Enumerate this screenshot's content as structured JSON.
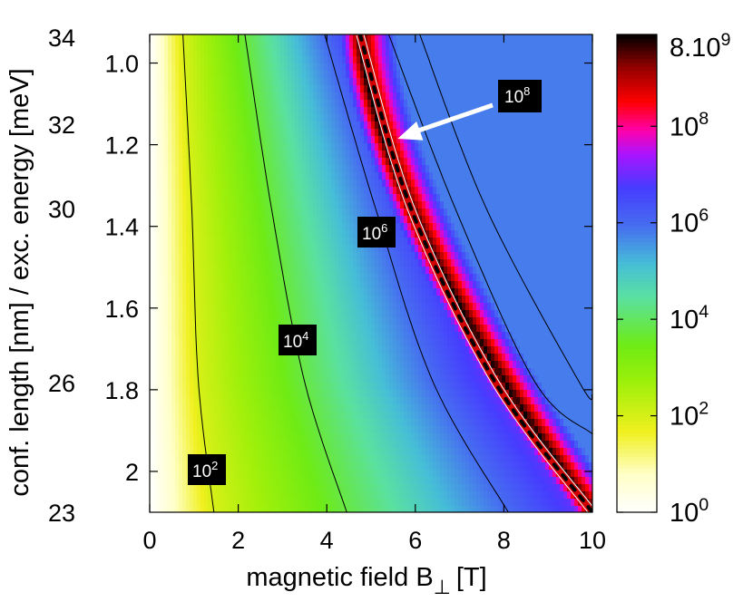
{
  "chart_data": {
    "type": "heatmap",
    "title": "",
    "xlabel": "magnetic field B",
    "xlabel_subscript": "⊥",
    "xlabel_unit": "[T]",
    "ylabel": "conf. length [nm] / exc. energy [meV]",
    "xlim": [
      0,
      10
    ],
    "energy_axis": {
      "range": [
        23,
        34
      ],
      "ticks": [
        "23",
        "26",
        "30",
        "32",
        "34"
      ]
    },
    "length_axis": {
      "range": [
        0.93,
        2.1
      ],
      "ticks": [
        "1.0",
        "1.2",
        "1.4",
        "1.6",
        "1.8",
        "2"
      ]
    },
    "x_ticks": [
      "0",
      "2",
      "4",
      "6",
      "8",
      "10"
    ],
    "colorbar": {
      "scale": "log",
      "range": [
        1,
        8000000000.0
      ],
      "max_label": {
        "base": "8.10",
        "exp": "9"
      },
      "tick_labels": [
        {
          "base": "10",
          "exp": "0",
          "value": 1
        },
        {
          "base": "10",
          "exp": "2",
          "value": 100
        },
        {
          "base": "10",
          "exp": "4",
          "value": 10000
        },
        {
          "base": "10",
          "exp": "6",
          "value": 1000000
        },
        {
          "base": "10",
          "exp": "8",
          "value": 100000000
        }
      ]
    },
    "contours": [
      {
        "level": 100,
        "label": {
          "base": "10",
          "exp": "2"
        },
        "points": [
          [
            0.75,
            34
          ],
          [
            0.95,
            30
          ],
          [
            1.1,
            26
          ],
          [
            1.45,
            23
          ]
        ]
      },
      {
        "level": 10000,
        "label": {
          "base": "10",
          "exp": "4"
        },
        "points": [
          [
            2.15,
            34
          ],
          [
            2.75,
            30
          ],
          [
            3.5,
            26
          ],
          [
            4.45,
            23
          ]
        ]
      },
      {
        "level": 1000000,
        "label": {
          "base": "10",
          "exp": "6"
        },
        "points": [
          [
            3.95,
            34
          ],
          [
            5.1,
            30
          ],
          [
            6.4,
            26
          ],
          [
            8.1,
            23
          ]
        ]
      },
      {
        "level": 1000000000,
        "label": null,
        "points": [
          [
            4.75,
            34
          ],
          [
            5.9,
            30
          ],
          [
            7.8,
            26
          ],
          [
            10.0,
            23
          ]
        ]
      },
      {
        "level": 10000000,
        "label": null,
        "points": [
          [
            5.4,
            34
          ],
          [
            6.9,
            30
          ],
          [
            8.7,
            26
          ],
          [
            10.0,
            24.8
          ]
        ]
      },
      {
        "level": 3000000,
        "label": null,
        "points": [
          [
            6.1,
            34
          ],
          [
            7.6,
            30
          ],
          [
            9.7,
            26
          ],
          [
            10.0,
            25.7
          ]
        ]
      }
    ],
    "annotation": {
      "text": {
        "base": "10",
        "exp": "8"
      },
      "target": [
        5.6,
        31.6
      ]
    }
  }
}
